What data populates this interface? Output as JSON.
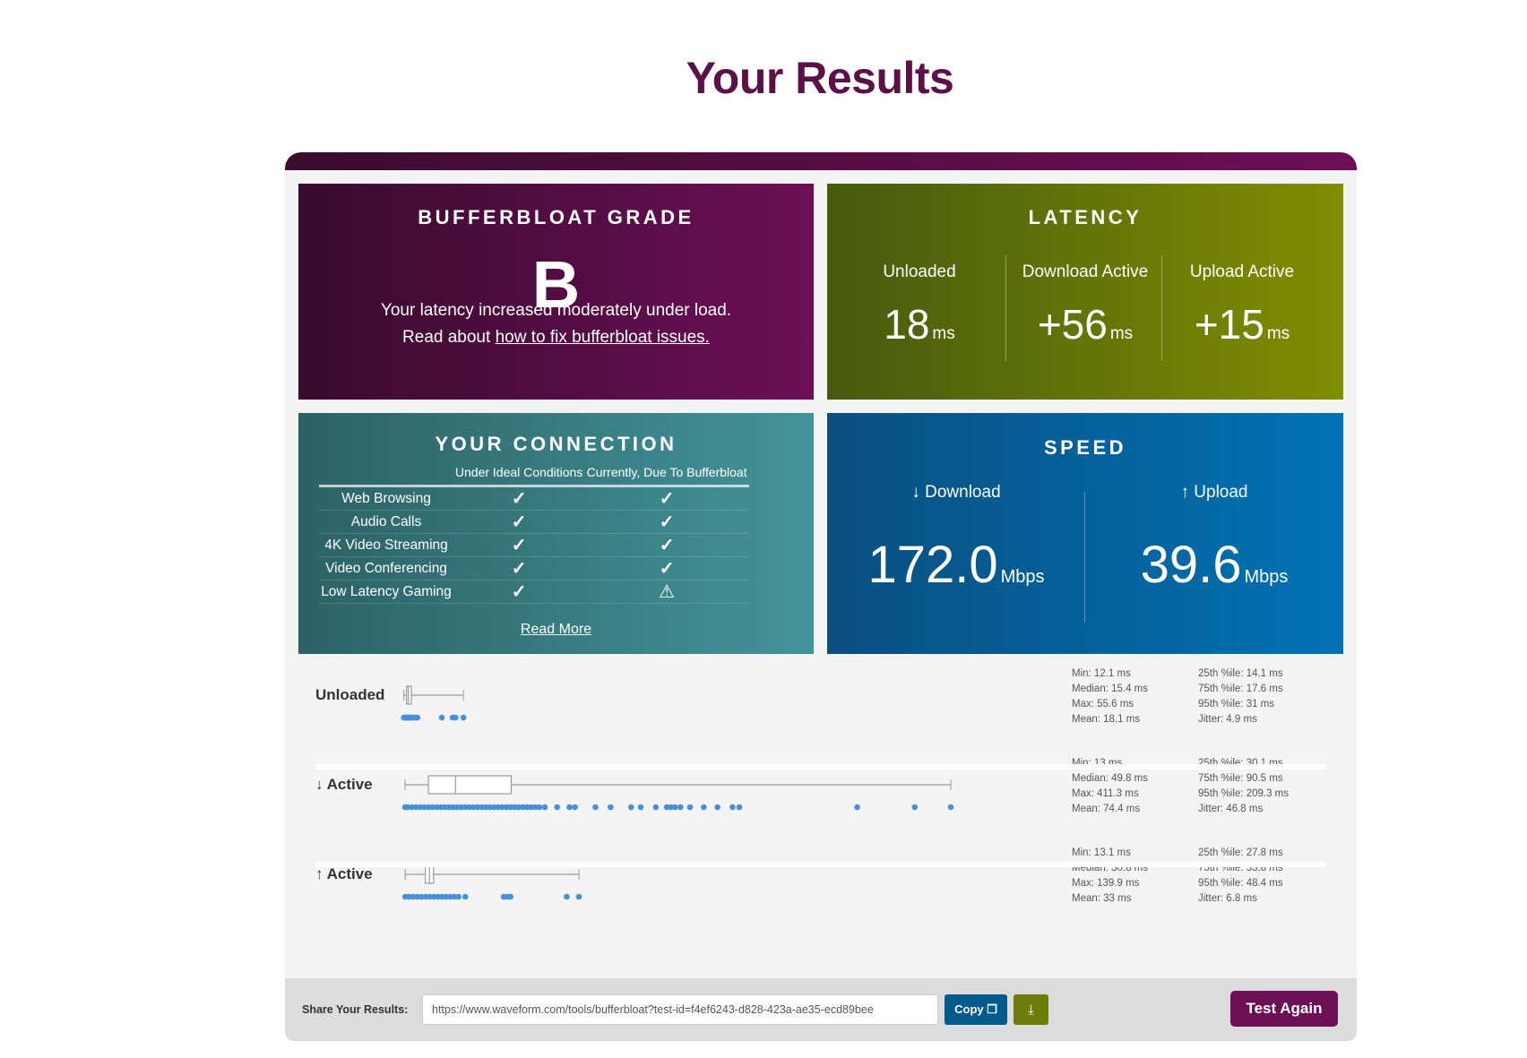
{
  "page_title": "Your Results",
  "colors": {
    "title": "#5c1047",
    "grade_panel": "#6c0f57",
    "latency_panel": "#808e02",
    "connection_panel": "#43949a",
    "speed_panel": "#0072b4",
    "dots": "#4a90d9",
    "test_again": "#6d0f55",
    "copy": "#005a8c",
    "download": "#6e7c0a"
  },
  "grade": {
    "title": "BUFFERBLOAT GRADE",
    "letter": "B",
    "message": "Your latency increased moderately under load.",
    "read_prefix": "Read about ",
    "read_link": "how to fix bufferbloat issues."
  },
  "latency": {
    "title": "LATENCY",
    "unit": "ms",
    "columns": [
      {
        "label": "Unloaded",
        "value": "18"
      },
      {
        "label": "Download Active",
        "value": "+56"
      },
      {
        "label": "Upload Active",
        "value": "+15"
      }
    ]
  },
  "connection": {
    "title": "YOUR CONNECTION",
    "headers": [
      "Under Ideal Conditions",
      "Currently, Due To Bufferbloat"
    ],
    "rows": [
      {
        "service": "Web Browsing",
        "ideal": "check",
        "current": "check"
      },
      {
        "service": "Audio Calls",
        "ideal": "check",
        "current": "check"
      },
      {
        "service": "4K Video Streaming",
        "ideal": "check",
        "current": "check"
      },
      {
        "service": "Video Conferencing",
        "ideal": "check",
        "current": "check"
      },
      {
        "service": "Low Latency Gaming",
        "ideal": "check",
        "current": "warning"
      }
    ],
    "read_more": "Read More"
  },
  "speed": {
    "title": "SPEED",
    "unit": "Mbps",
    "download": {
      "label": "↓ Download",
      "value": "172.0"
    },
    "upload": {
      "label": "↑ Upload",
      "value": "39.6"
    }
  },
  "chart_data": {
    "type": "boxplot",
    "unit": "ms",
    "series": [
      {
        "name": "Unloaded",
        "min": 12.1,
        "q1": 14.1,
        "median": 15.4,
        "q3": 17.6,
        "max": 55.6,
        "samples": [
          12.1,
          12.5,
          13,
          13.5,
          14,
          14.5,
          15,
          15.4,
          16,
          16.5,
          17,
          17.6,
          18.5,
          19.5,
          21,
          22,
          39.8,
          47.7,
          49.9,
          55.6
        ],
        "stats": [
          "Min: 12.1 ms",
          "Median: 15.4 ms",
          "Max: 55.6 ms",
          "Mean: 18.1 ms"
        ],
        "stats2": [
          "25th %ile: 14.1 ms",
          "75th %ile: 17.6 ms",
          "95th %ile: 31 ms",
          "Jitter: 4.9 ms"
        ]
      },
      {
        "name": "↓ Active",
        "min": 13,
        "q1": 30.1,
        "median": 49.8,
        "q3": 90.5,
        "max": 411.3,
        "samples": [
          13,
          15,
          18,
          21,
          24,
          27,
          30,
          33,
          36,
          39,
          42,
          45,
          48,
          51,
          54,
          57,
          60,
          63,
          66,
          69,
          72,
          75,
          78,
          81,
          84,
          87,
          90,
          93,
          96,
          99,
          102,
          105,
          108,
          111,
          115,
          124,
          133,
          137,
          152,
          163,
          178,
          185,
          196,
          204,
          207,
          210,
          214,
          221,
          231,
          241,
          252,
          257,
          343,
          385,
          411.3
        ],
        "stats": [
          "Min: 13 ms",
          "Median: 49.8 ms",
          "Max: 411.3 ms",
          "Mean: 74.4 ms"
        ],
        "stats2": [
          "25th %ile: 30.1 ms",
          "75th %ile: 90.5 ms",
          "95th %ile: 209.3 ms",
          "Jitter: 46.8 ms"
        ]
      },
      {
        "name": "↑ Active",
        "min": 13.1,
        "q1": 27.8,
        "median": 30.8,
        "q3": 33.8,
        "max": 139.9,
        "samples": [
          13.1,
          16,
          19,
          22,
          25,
          28,
          31,
          34,
          37,
          40,
          43,
          46,
          49,
          52,
          57,
          85,
          88,
          90,
          131,
          139.9
        ],
        "stats": [
          "Min: 13.1 ms",
          "Median: 30.8 ms",
          "Max: 139.9 ms",
          "Mean: 33 ms"
        ],
        "stats2": [
          "25th %ile: 27.8 ms",
          "75th %ile: 33.8 ms",
          "95th %ile: 48.4 ms",
          "Jitter: 6.8 ms"
        ]
      }
    ]
  },
  "share": {
    "label": "Share Your Results:",
    "url": "https://www.waveform.com/tools/bufferbloat?test-id=f4ef6243-d828-423a-ae35-ecd89bee",
    "copy_label": "Copy",
    "download_icon": "download-icon",
    "test_again": "Test Again"
  }
}
